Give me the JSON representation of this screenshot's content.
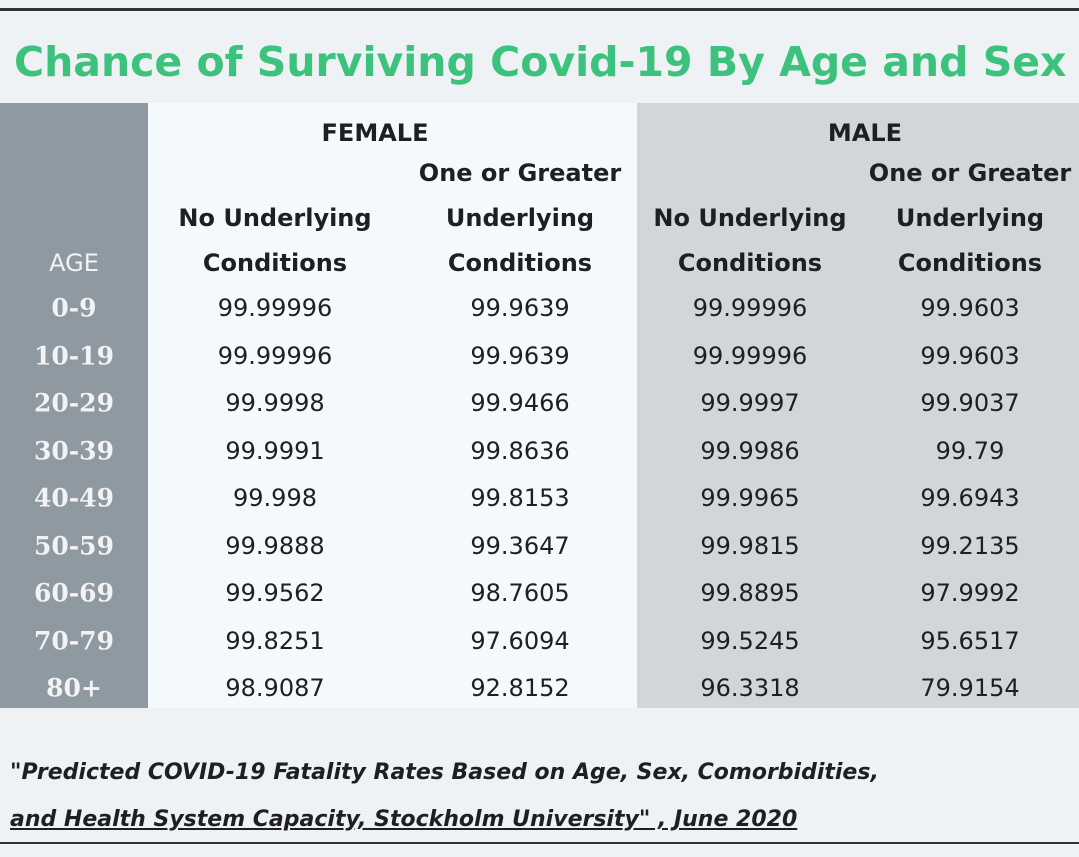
{
  "title": "Chance of Surviving Covid-19 By Age and Sex",
  "table": {
    "age_header": "AGE",
    "groups": [
      "FEMALE",
      "MALE"
    ],
    "columns": [
      {
        "lines": [
          "No Underlying",
          "Conditions"
        ]
      },
      {
        "lines": [
          "One or Greater",
          "Underlying",
          "Conditions"
        ]
      },
      {
        "lines": [
          "No Underlying",
          "Conditions"
        ]
      },
      {
        "lines": [
          "One or Greater",
          "Underlying",
          "Conditions"
        ]
      }
    ],
    "rows": [
      [
        "0-9",
        "99.99996",
        "99.9639",
        "99.99996",
        "99.9603"
      ],
      [
        "10-19",
        "99.99996",
        "99.9639",
        "99.99996",
        "99.9603"
      ],
      [
        "20-29",
        "99.9998",
        "99.9466",
        "99.9997",
        "99.9037"
      ],
      [
        "30-39",
        "99.9991",
        "99.8636",
        "99.9986",
        "99.79"
      ],
      [
        "40-49",
        "99.998",
        "99.8153",
        "99.9965",
        "99.6943"
      ],
      [
        "50-59",
        "99.9888",
        "99.3647",
        "99.9815",
        "99.2135"
      ],
      [
        "60-69",
        "99.9562",
        "98.7605",
        "99.8895",
        "97.9992"
      ],
      [
        "70-79",
        "99.8251",
        "97.6094",
        "99.5245",
        "95.6517"
      ],
      [
        "80+",
        "98.9087",
        "92.8152",
        "96.3318",
        "79.9154"
      ]
    ]
  },
  "source": {
    "lines": [
      "\"Predicted COVID-19 Fatality Rates Based on Age, Sex, Comorbidities,",
      "and Health System Capacity,  Stockholm University\" , June 2020"
    ]
  }
}
